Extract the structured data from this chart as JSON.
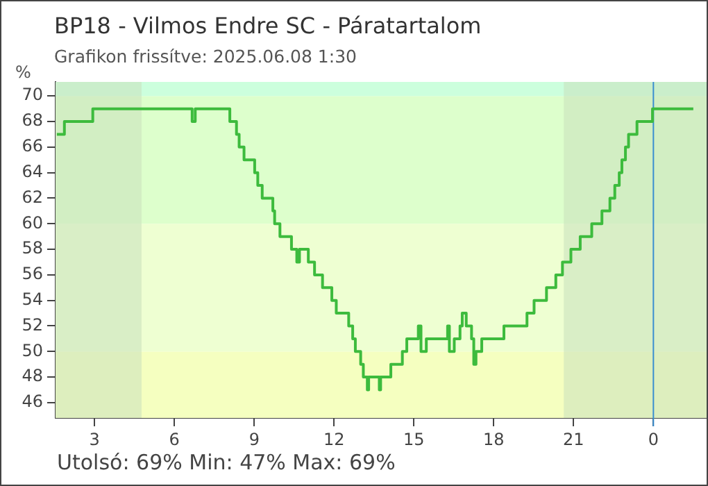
{
  "chart_data": {
    "type": "step",
    "title": "BP18 - Vilmos Endre SC - Páratartalom",
    "subtitle": "Grafikon frissítve: 2025.06.08 1:30",
    "ylabel": "%",
    "annotations": [
      "Utolsó: 69%  Min: 47%  Max: 69%"
    ],
    "series": [
      {
        "color": "#3dbb3d",
        "x": [
          "2025-06-07T01:35",
          "2025-06-07T01:52",
          "2025-06-07T02:56",
          "2025-06-07T06:40",
          "2025-06-07T06:47",
          "2025-06-07T08:05",
          "2025-06-07T08:20",
          "2025-06-07T08:26",
          "2025-06-07T08:37",
          "2025-06-07T09:01",
          "2025-06-07T09:08",
          "2025-06-07T09:18",
          "2025-06-07T09:42",
          "2025-06-07T09:46",
          "2025-06-07T09:58",
          "2025-06-07T10:24",
          "2025-06-07T10:36",
          "2025-06-07T10:42",
          "2025-06-07T11:02",
          "2025-06-07T11:16",
          "2025-06-07T11:34",
          "2025-06-07T11:55",
          "2025-06-07T12:05",
          "2025-06-07T12:33",
          "2025-06-07T12:42",
          "2025-06-07T12:48",
          "2025-06-07T13:00",
          "2025-06-07T13:06",
          "2025-06-07T13:15",
          "2025-06-07T13:18",
          "2025-06-07T13:42",
          "2025-06-07T13:45",
          "2025-06-07T14:08",
          "2025-06-07T14:34",
          "2025-06-07T14:44",
          "2025-06-07T15:10",
          "2025-06-07T15:16",
          "2025-06-07T15:28",
          "2025-06-07T16:16",
          "2025-06-07T16:20",
          "2025-06-07T16:31",
          "2025-06-07T16:44",
          "2025-06-07T16:49",
          "2025-06-07T16:58",
          "2025-06-07T17:10",
          "2025-06-07T17:15",
          "2025-06-07T17:20",
          "2025-06-07T17:33",
          "2025-06-07T18:23",
          "2025-06-07T19:15",
          "2025-06-07T19:31",
          "2025-06-07T19:59",
          "2025-06-07T20:20",
          "2025-06-07T20:35",
          "2025-06-07T20:54",
          "2025-06-07T21:15",
          "2025-06-07T21:41",
          "2025-06-07T22:04",
          "2025-06-07T22:22",
          "2025-06-07T22:33",
          "2025-06-07T22:43",
          "2025-06-07T22:49",
          "2025-06-07T22:57",
          "2025-06-07T23:04",
          "2025-06-07T23:23",
          "2025-06-07T23:58",
          "2025-06-08T01:30"
        ],
        "values": [
          67,
          68,
          69,
          68,
          69,
          68,
          67,
          66,
          65,
          64,
          63,
          62,
          61,
          60,
          59,
          58,
          57,
          58,
          57,
          56,
          55,
          54,
          53,
          52,
          51,
          50,
          49,
          48,
          47,
          48,
          47,
          48,
          49,
          50,
          51,
          52,
          50,
          51,
          52,
          50,
          51,
          52,
          53,
          52,
          51,
          49,
          50,
          51,
          52,
          53,
          54,
          55,
          56,
          57,
          58,
          59,
          60,
          61,
          62,
          63,
          64,
          65,
          66,
          67,
          68,
          69,
          69
        ]
      }
    ],
    "xlim": [
      "2025-06-07T01:32",
      "2025-06-08T02:00"
    ],
    "xticks": [
      {
        "value": "2025-06-07T03:00",
        "label": "3"
      },
      {
        "value": "2025-06-07T06:00",
        "label": "6"
      },
      {
        "value": "2025-06-07T09:00",
        "label": "9"
      },
      {
        "value": "2025-06-07T12:00",
        "label": "12"
      },
      {
        "value": "2025-06-07T15:00",
        "label": "15"
      },
      {
        "value": "2025-06-07T18:00",
        "label": "18"
      },
      {
        "value": "2025-06-07T21:00",
        "label": "21"
      },
      {
        "value": "2025-06-08T00:00",
        "label": "0"
      }
    ],
    "ylim": [
      44.8,
      71.1
    ],
    "yticks": [
      46,
      48,
      50,
      52,
      54,
      56,
      58,
      60,
      62,
      64,
      66,
      68,
      70
    ],
    "bands": [
      {
        "axis": "y",
        "from": 44.8,
        "to": 50,
        "color": "#f5ffc0"
      },
      {
        "axis": "y",
        "from": 50,
        "to": 60,
        "color": "#eeffd2"
      },
      {
        "axis": "y",
        "from": 60,
        "to": 70,
        "color": "#ddffcc"
      },
      {
        "axis": "y",
        "from": 70,
        "to": 71.1,
        "color": "#ccffdd"
      },
      {
        "axis": "x",
        "from": "2025-06-07T01:32",
        "to": "2025-06-07T04:46",
        "color": "#c9e0bb"
      },
      {
        "axis": "x",
        "from": "2025-06-07T20:38",
        "to": "2025-06-08T02:00",
        "color": "#c9e0bb"
      }
    ],
    "ref_lines": [
      {
        "axis": "x",
        "value": "2025-06-08T00:00",
        "color": "#3a8ed0"
      }
    ],
    "grid": false,
    "legend": false,
    "marker": "none",
    "line_style": "solid"
  }
}
